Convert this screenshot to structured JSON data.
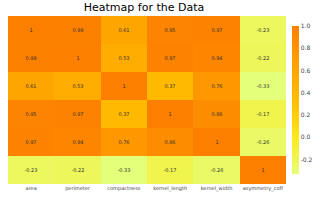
{
  "chart_data": {
    "type": "heatmap",
    "title": "Heatmap for the Data",
    "categories": [
      "area",
      "perimeter",
      "compactness",
      "kernel_length",
      "kernel_width",
      "asymmetry_coff"
    ],
    "cells": [
      [
        1,
        0.99,
        0.61,
        0.95,
        0.97,
        -0.23
      ],
      [
        0.99,
        1,
        0.53,
        0.97,
        0.94,
        -0.22
      ],
      [
        0.61,
        0.53,
        1,
        0.37,
        0.76,
        -0.33
      ],
      [
        0.95,
        0.97,
        0.37,
        1,
        0.86,
        -0.17
      ],
      [
        0.97,
        0.94,
        0.76,
        0.86,
        1,
        -0.26
      ],
      [
        -0.23,
        -0.22,
        -0.33,
        -0.17,
        -0.26,
        1
      ]
    ],
    "data_labels": true,
    "tick_labels": "x",
    "colorbar": {
      "range": [
        -0.33,
        1
      ],
      "ticks": [
        {
          "value": 1,
          "label": "1.0"
        },
        0.8,
        0.6,
        0.4,
        0.2,
        {
          "value": 0,
          "label": "0.0"
        },
        -0.2
      ]
    }
  }
}
